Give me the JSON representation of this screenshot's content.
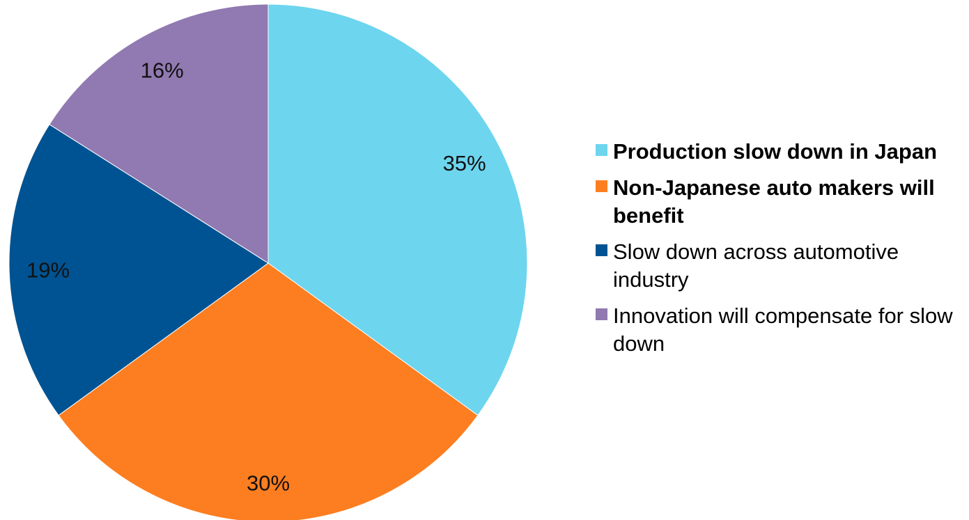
{
  "chart_data": {
    "type": "pie",
    "title": "",
    "slices": [
      {
        "label": "Production slow down in Japan",
        "value": 35,
        "display": "35%",
        "color": "#6DD5EE",
        "bold": true
      },
      {
        "label": "Non-Japanese auto makers will benefit",
        "value": 30,
        "display": "30%",
        "color": "#FD7E20",
        "bold": true
      },
      {
        "label": "Slow down across automotive industry",
        "value": 19,
        "display": "19%",
        "color": "#005392",
        "bold": false
      },
      {
        "label": "Innovation will compensate for slow down",
        "value": 16,
        "display": "16%",
        "color": "#9179B1",
        "bold": false
      }
    ],
    "start_angle": "12 o'clock",
    "direction": "clockwise",
    "legend_position": "right"
  }
}
